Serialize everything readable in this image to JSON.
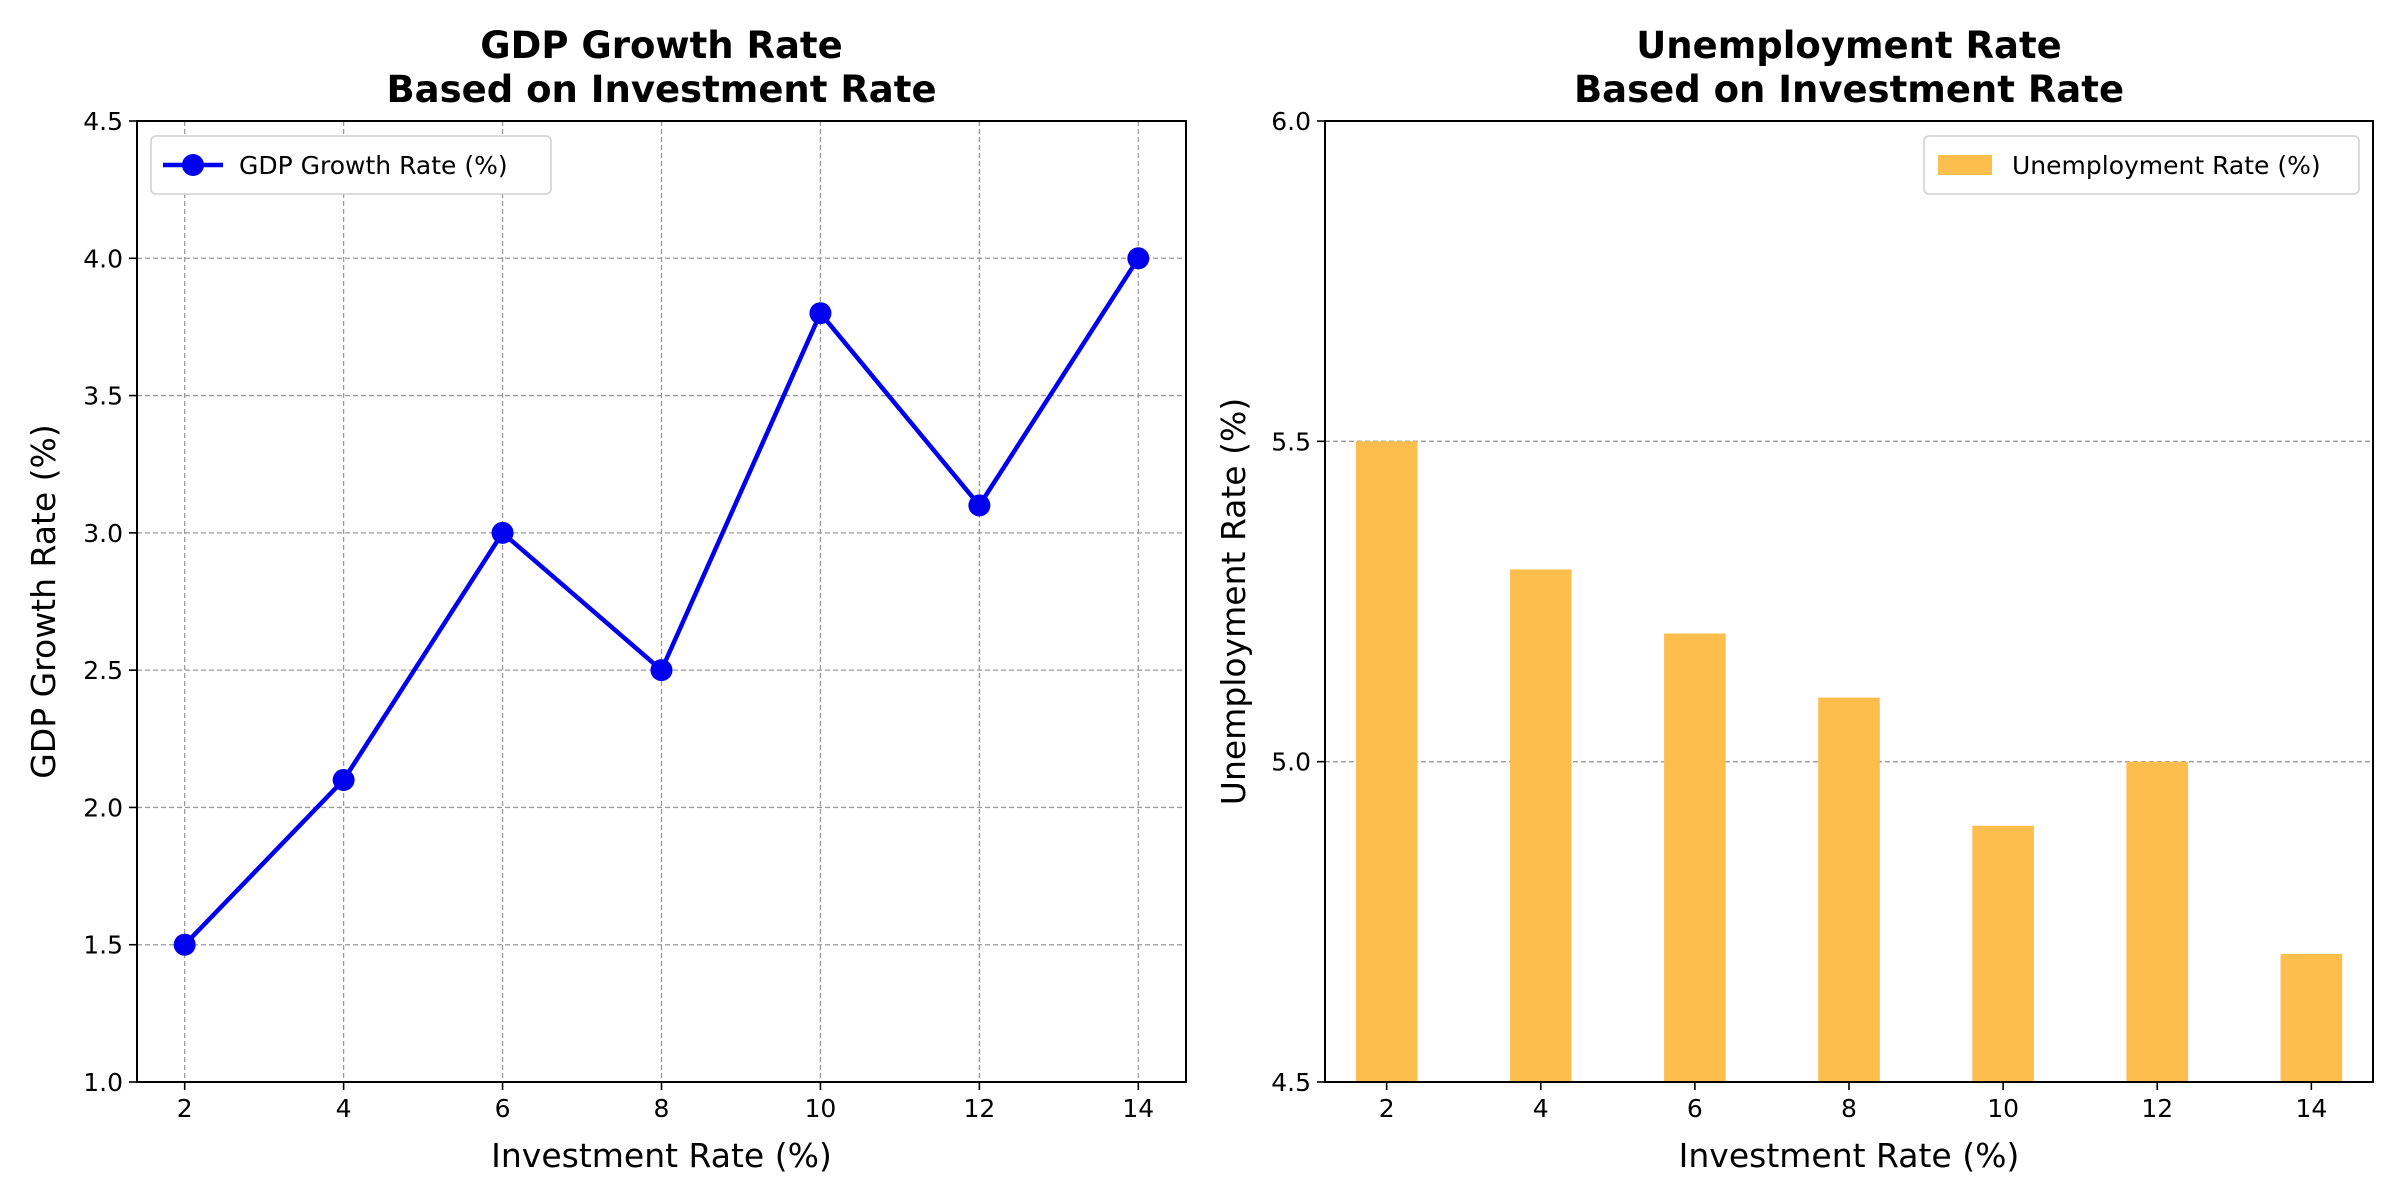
{
  "chart_data": [
    {
      "type": "line",
      "title": "GDP Growth Rate\nBased on Investment Rate",
      "xlabel": "Investment Rate (%)",
      "ylabel": "GDP Growth Rate (%)",
      "x": [
        2,
        4,
        6,
        8,
        10,
        12,
        14
      ],
      "series": [
        {
          "name": "GDP Growth Rate (%)",
          "values": [
            1.5,
            2.1,
            3.0,
            2.5,
            3.8,
            3.1,
            4.0
          ],
          "color": "#0000ee"
        }
      ],
      "xticks": [
        "2",
        "4",
        "6",
        "8",
        "10",
        "12",
        "14"
      ],
      "yticks": [
        "1.0",
        "1.5",
        "2.0",
        "2.5",
        "3.0",
        "3.5",
        "4.0",
        "4.5"
      ],
      "ylim": [
        1.0,
        4.5
      ],
      "grid": "both",
      "legend": "upper-left"
    },
    {
      "type": "bar",
      "title": "Unemployment Rate\nBased on Investment Rate",
      "xlabel": "Investment Rate (%)",
      "ylabel": "Unemployment Rate (%)",
      "categories": [
        "2",
        "4",
        "6",
        "8",
        "10",
        "12",
        "14"
      ],
      "series": [
        {
          "name": "Unemployment Rate (%)",
          "values": [
            5.5,
            5.3,
            5.2,
            5.1,
            4.9,
            5.0,
            4.7
          ],
          "color": "#fdbe4e"
        }
      ],
      "yticks": [
        "4.5",
        "5.0",
        "5.5",
        "6.0"
      ],
      "ylim": [
        4.5,
        6.0
      ],
      "grid": "y",
      "legend": "upper-right"
    }
  ]
}
